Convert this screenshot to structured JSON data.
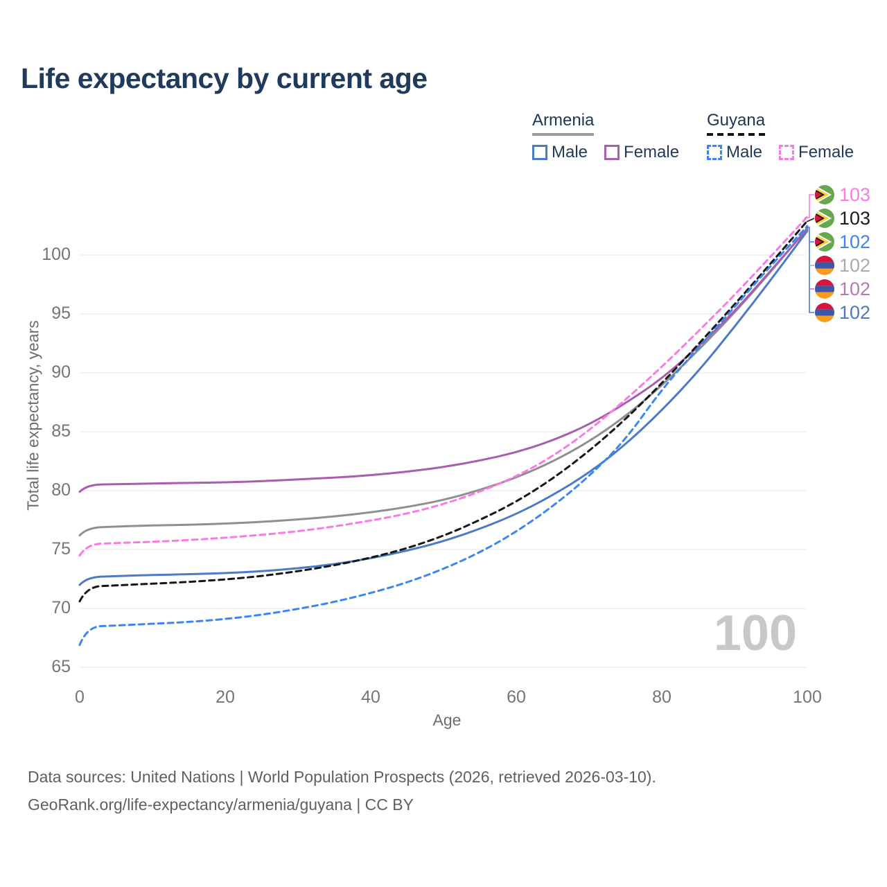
{
  "page": {
    "title": "Life expectancy by current age"
  },
  "legend": {
    "groups": [
      {
        "country": "Armenia",
        "underline_style": "solid",
        "underline_color": "#9b9b9b",
        "items": [
          {
            "label": "Male",
            "color": "#4a7bc4",
            "dashed": false
          },
          {
            "label": "Female",
            "color": "#a85dae",
            "dashed": false
          }
        ]
      },
      {
        "country": "Guyana",
        "underline_style": "dashed",
        "underline_color": "#141414",
        "items": [
          {
            "label": "Male",
            "color": "#3c86f4",
            "dashed": true
          },
          {
            "label": "Female",
            "color": "#fb79e3",
            "dashed": true
          }
        ]
      }
    ]
  },
  "chart_data": {
    "type": "line",
    "title": "Life expectancy by current age",
    "xlabel": "Age",
    "ylabel": "Total life expectancy, years",
    "x_ticks": [
      0,
      20,
      40,
      60,
      80,
      100
    ],
    "y_ticks": [
      65,
      70,
      75,
      80,
      85,
      90,
      95,
      100
    ],
    "xlim": [
      0,
      100
    ],
    "ylim": [
      63.5,
      104
    ],
    "grid": "horizontal",
    "legend_position": "top-right",
    "current_age_indicator": "100",
    "x": [
      0,
      1,
      5,
      10,
      15,
      20,
      25,
      30,
      35,
      40,
      45,
      50,
      55,
      60,
      65,
      70,
      75,
      80,
      85,
      90,
      95,
      100
    ],
    "series": [
      {
        "name": "Armenia All",
        "country": "Armenia",
        "sex": "all",
        "color": "#8f8f8f",
        "dashed": false,
        "values": [
          76.2,
          76.85,
          76.95,
          77.05,
          77.1,
          77.2,
          77.35,
          77.55,
          77.8,
          78.15,
          78.6,
          79.2,
          80.05,
          81.1,
          82.45,
          84.15,
          86.3,
          88.9,
          91.9,
          95.1,
          98.6,
          102.3
        ]
      },
      {
        "name": "Armenia Female",
        "country": "Armenia",
        "sex": "female",
        "color": "#a85dae",
        "dashed": false,
        "values": [
          79.9,
          80.5,
          80.55,
          80.6,
          80.65,
          80.7,
          80.8,
          80.95,
          81.1,
          81.3,
          81.6,
          82.0,
          82.55,
          83.25,
          84.25,
          85.6,
          87.4,
          89.5,
          92.2,
          95.2,
          98.7,
          102.2
        ]
      },
      {
        "name": "Guyana Female",
        "country": "Guyana",
        "sex": "female",
        "color": "#fb79e3",
        "dashed": true,
        "values": [
          74.5,
          75.45,
          75.55,
          75.65,
          75.8,
          76.0,
          76.25,
          76.55,
          76.95,
          77.45,
          78.05,
          78.85,
          79.9,
          81.2,
          82.9,
          85.1,
          87.7,
          90.5,
          93.5,
          96.6,
          99.9,
          103.25
        ]
      },
      {
        "name": "Armenia Male",
        "country": "Armenia",
        "sex": "male",
        "color": "#4a7bc4",
        "dashed": false,
        "values": [
          72.0,
          72.65,
          72.75,
          72.85,
          72.9,
          73.0,
          73.15,
          73.4,
          73.75,
          74.25,
          74.9,
          75.7,
          76.75,
          78.0,
          79.6,
          81.5,
          83.9,
          86.8,
          90.1,
          93.9,
          97.9,
          102.05
        ]
      },
      {
        "name": "Guyana All",
        "country": "Guyana",
        "sex": "all",
        "color": "#161616",
        "dashed": true,
        "values": [
          70.6,
          71.85,
          71.95,
          72.1,
          72.25,
          72.45,
          72.75,
          73.15,
          73.65,
          74.3,
          75.1,
          76.15,
          77.5,
          79.05,
          81.0,
          83.35,
          86.05,
          89.1,
          92.4,
          95.8,
          99.3,
          102.9
        ]
      },
      {
        "name": "Guyana Male",
        "country": "Guyana",
        "sex": "male",
        "color": "#3c86f4",
        "dashed": true,
        "values": [
          66.9,
          68.45,
          68.55,
          68.7,
          68.85,
          69.1,
          69.45,
          69.95,
          70.55,
          71.3,
          72.2,
          73.35,
          74.75,
          76.5,
          78.65,
          81.2,
          84.3,
          88.6,
          92.1,
          95.6,
          99.1,
          102.45
        ]
      }
    ],
    "end_labels": [
      {
        "series": "Guyana Female",
        "value": "103",
        "color": "#fb79e3",
        "flag": "guyana"
      },
      {
        "series": "Guyana All",
        "value": "103",
        "color": "#1c1c1c",
        "flag": "guyana"
      },
      {
        "series": "Guyana Male",
        "value": "102",
        "color": "#3c86f4",
        "flag": "guyana"
      },
      {
        "series": "Armenia All",
        "value": "102",
        "color": "#ababab",
        "flag": "armenia"
      },
      {
        "series": "Armenia Female",
        "value": "102",
        "color": "#b57ab5",
        "flag": "armenia"
      },
      {
        "series": "Armenia Male",
        "value": "102",
        "color": "#4a7bc4",
        "flag": "armenia"
      }
    ],
    "style": {
      "grid_color": "#ededed",
      "axis_text_color": "#757575"
    }
  },
  "watermark": "100",
  "footer": {
    "line1": "Data sources: United Nations | World Population Prospects (2026, retrieved 2026-03-10).",
    "line2": "GeoRank.org/life-expectancy/armenia/guyana | CC BY"
  }
}
